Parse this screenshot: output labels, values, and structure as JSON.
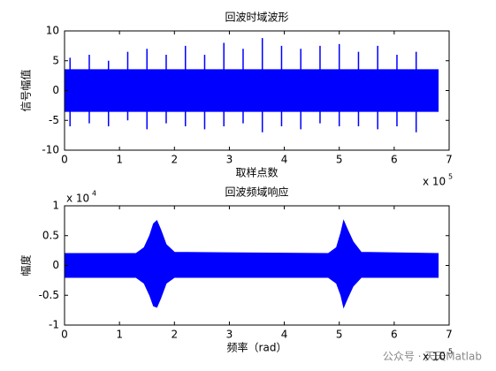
{
  "chart_data": [
    {
      "type": "band",
      "title": "回波时域波形",
      "xlabel": "取样点数",
      "ylabel": "信号幅值",
      "x_exponent_base": "x 10",
      "x_exponent": "5",
      "color": "#0000ff",
      "x": [
        0,
        6.8
      ],
      "upper": [
        3.5,
        3.5
      ],
      "lower": [
        -3.5,
        -3.5
      ],
      "spikes": {
        "x": [
          0.1,
          0.45,
          0.8,
          1.15,
          1.5,
          1.85,
          2.2,
          2.55,
          2.9,
          3.25,
          3.6,
          3.95,
          4.3,
          4.65,
          5.0,
          5.35,
          5.7,
          6.05,
          6.4
        ],
        "upper": [
          5.5,
          6,
          5,
          6.5,
          7,
          6,
          7.5,
          6,
          8,
          7,
          8.8,
          7.5,
          7,
          7.5,
          7.8,
          6.5,
          7.5,
          6,
          6.5
        ],
        "lower": [
          -6,
          -5.5,
          -6,
          -5,
          -6.5,
          -5.5,
          -6,
          -6.5,
          -6,
          -5.5,
          -7,
          -6,
          -6.5,
          -5.5,
          -6,
          -6,
          -6.5,
          -6,
          -7
        ]
      },
      "xlim": [
        0,
        7
      ],
      "xticks": [
        0,
        1,
        2,
        3,
        4,
        5,
        6,
        7
      ],
      "ylim": [
        -10,
        10
      ],
      "yticks": [
        -10,
        -5,
        0,
        5,
        10
      ]
    },
    {
      "type": "band",
      "title": "回波频域响应",
      "xlabel": "频率（rad）",
      "ylabel": "幅度",
      "x_exponent_base": "x 10",
      "x_exponent": "5",
      "y_exponent_base": "x 10",
      "y_exponent": "4",
      "color": "#0000ff",
      "x": [
        0,
        1.3,
        1.45,
        1.55,
        1.62,
        1.68,
        1.75,
        1.85,
        2.0,
        4.8,
        4.95,
        5.03,
        5.08,
        5.15,
        5.25,
        5.4,
        6.8
      ],
      "upper": [
        0.2,
        0.2,
        0.3,
        0.5,
        0.7,
        0.75,
        0.6,
        0.35,
        0.22,
        0.2,
        0.3,
        0.55,
        0.75,
        0.6,
        0.4,
        0.22,
        0.2
      ],
      "lower": [
        -0.2,
        -0.2,
        -0.3,
        -0.5,
        -0.68,
        -0.7,
        -0.55,
        -0.3,
        -0.2,
        -0.2,
        -0.3,
        -0.5,
        -0.7,
        -0.55,
        -0.35,
        -0.2,
        -0.2
      ],
      "xlim": [
        0,
        7
      ],
      "xticks": [
        0,
        1,
        2,
        3,
        4,
        5,
        6,
        7
      ],
      "ylim": [
        -1,
        1
      ],
      "yticks": [
        -1,
        -0.5,
        0,
        0.5,
        1
      ]
    }
  ],
  "watermark": "公众号 · 天天Matlab"
}
